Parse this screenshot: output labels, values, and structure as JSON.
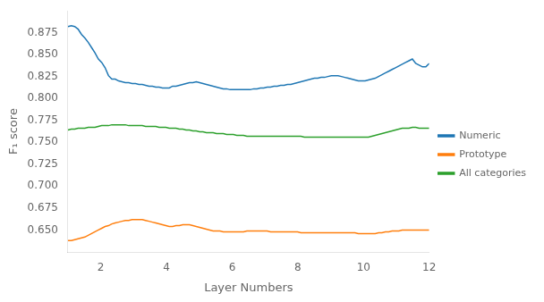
{
  "chart_data": {
    "type": "line",
    "xlabel": "Layer Numbers",
    "ylabel": "F₁ score",
    "x": [
      1,
      1.1028,
      1.2056,
      1.3084,
      1.4112,
      1.514,
      1.6168,
      1.7196,
      1.8224,
      1.9252,
      2.028,
      2.1308,
      2.2336,
      2.3364,
      2.4393,
      2.5421,
      2.6449,
      2.7477,
      2.8505,
      2.9533,
      3.0561,
      3.1589,
      3.2617,
      3.3645,
      3.4673,
      3.5701,
      3.6729,
      3.7757,
      3.8785,
      3.9813,
      4.0841,
      4.1869,
      4.2897,
      4.3925,
      4.4953,
      4.5981,
      4.7009,
      4.8037,
      4.9065,
      5.0093,
      5.1121,
      5.215,
      5.3178,
      5.4206,
      5.5234,
      5.6262,
      5.729,
      5.8318,
      5.9346,
      6.0374,
      6.1402,
      6.243,
      6.3458,
      6.4486,
      6.5514,
      6.6542,
      6.757,
      6.8598,
      6.9626,
      7.0654,
      7.1682,
      7.271,
      7.3738,
      7.4766,
      7.5794,
      7.6822,
      7.785,
      7.8879,
      7.9907,
      8.0935,
      8.1963,
      8.2991,
      8.4019,
      8.5047,
      8.6075,
      8.7103,
      8.8131,
      8.9159,
      9.0187,
      9.1215,
      9.2243,
      9.3271,
      9.4299,
      9.5327,
      9.6355,
      9.7383,
      9.8411,
      9.9439,
      10.0467,
      10.1495,
      10.2523,
      10.3551,
      10.4579,
      10.5607,
      10.6636,
      10.7664,
      10.8692,
      10.972,
      11.0748,
      11.1776,
      11.2804,
      11.3832,
      11.486,
      11.5888,
      11.6916,
      11.7944,
      11.8972,
      12
    ],
    "series": [
      {
        "name": "Numeric",
        "color": "#1f77b4",
        "values": [
          0.882,
          0.883,
          0.882,
          0.879,
          0.873,
          0.869,
          0.864,
          0.858,
          0.852,
          0.845,
          0.841,
          0.835,
          0.826,
          0.822,
          0.822,
          0.82,
          0.819,
          0.818,
          0.818,
          0.817,
          0.817,
          0.816,
          0.816,
          0.815,
          0.814,
          0.814,
          0.813,
          0.813,
          0.812,
          0.812,
          0.812,
          0.814,
          0.814,
          0.815,
          0.816,
          0.817,
          0.818,
          0.818,
          0.819,
          0.818,
          0.817,
          0.816,
          0.815,
          0.814,
          0.813,
          0.812,
          0.811,
          0.811,
          0.81,
          0.81,
          0.81,
          0.81,
          0.81,
          0.81,
          0.81,
          0.811,
          0.811,
          0.812,
          0.812,
          0.813,
          0.813,
          0.814,
          0.814,
          0.815,
          0.815,
          0.816,
          0.816,
          0.817,
          0.818,
          0.819,
          0.82,
          0.821,
          0.822,
          0.823,
          0.823,
          0.824,
          0.824,
          0.825,
          0.826,
          0.826,
          0.826,
          0.825,
          0.824,
          0.823,
          0.822,
          0.821,
          0.82,
          0.82,
          0.82,
          0.821,
          0.822,
          0.823,
          0.825,
          0.827,
          0.829,
          0.831,
          0.833,
          0.835,
          0.837,
          0.839,
          0.841,
          0.843,
          0.845,
          0.84,
          0.838,
          0.836,
          0.836,
          0.84
        ]
      },
      {
        "name": "Prototype",
        "color": "#ff7f0e",
        "values": [
          0.638,
          0.638,
          0.639,
          0.64,
          0.641,
          0.642,
          0.644,
          0.646,
          0.648,
          0.65,
          0.652,
          0.654,
          0.655,
          0.657,
          0.658,
          0.659,
          0.66,
          0.661,
          0.661,
          0.662,
          0.662,
          0.662,
          0.662,
          0.661,
          0.66,
          0.659,
          0.658,
          0.657,
          0.656,
          0.655,
          0.654,
          0.654,
          0.655,
          0.655,
          0.656,
          0.656,
          0.656,
          0.655,
          0.654,
          0.653,
          0.652,
          0.651,
          0.65,
          0.649,
          0.649,
          0.649,
          0.648,
          0.648,
          0.648,
          0.648,
          0.648,
          0.648,
          0.648,
          0.649,
          0.649,
          0.649,
          0.649,
          0.649,
          0.649,
          0.649,
          0.648,
          0.648,
          0.648,
          0.648,
          0.648,
          0.648,
          0.648,
          0.648,
          0.648,
          0.647,
          0.647,
          0.647,
          0.647,
          0.647,
          0.647,
          0.647,
          0.647,
          0.647,
          0.647,
          0.647,
          0.647,
          0.647,
          0.647,
          0.647,
          0.647,
          0.647,
          0.646,
          0.646,
          0.646,
          0.646,
          0.646,
          0.646,
          0.647,
          0.647,
          0.648,
          0.648,
          0.649,
          0.649,
          0.649,
          0.65,
          0.65,
          0.65,
          0.65,
          0.65,
          0.65,
          0.65,
          0.65,
          0.65
        ]
      },
      {
        "name": "All categories",
        "color": "#2ca02c",
        "values": [
          0.764,
          0.765,
          0.765,
          0.766,
          0.766,
          0.766,
          0.767,
          0.767,
          0.767,
          0.768,
          0.769,
          0.769,
          0.769,
          0.77,
          0.77,
          0.77,
          0.77,
          0.77,
          0.769,
          0.769,
          0.769,
          0.769,
          0.769,
          0.768,
          0.768,
          0.768,
          0.768,
          0.767,
          0.767,
          0.767,
          0.766,
          0.766,
          0.766,
          0.765,
          0.765,
          0.764,
          0.764,
          0.763,
          0.763,
          0.762,
          0.762,
          0.761,
          0.761,
          0.761,
          0.76,
          0.76,
          0.76,
          0.759,
          0.759,
          0.759,
          0.758,
          0.758,
          0.758,
          0.757,
          0.757,
          0.757,
          0.757,
          0.757,
          0.757,
          0.757,
          0.757,
          0.757,
          0.757,
          0.757,
          0.757,
          0.757,
          0.757,
          0.757,
          0.757,
          0.757,
          0.756,
          0.756,
          0.756,
          0.756,
          0.756,
          0.756,
          0.756,
          0.756,
          0.756,
          0.756,
          0.756,
          0.756,
          0.756,
          0.756,
          0.756,
          0.756,
          0.756,
          0.756,
          0.756,
          0.756,
          0.757,
          0.758,
          0.759,
          0.76,
          0.761,
          0.762,
          0.763,
          0.764,
          0.765,
          0.766,
          0.766,
          0.766,
          0.767,
          0.767,
          0.766,
          0.766,
          0.766,
          0.766
        ]
      }
    ],
    "xlim": [
      1,
      12
    ],
    "ylim": [
      0.625,
      0.9
    ],
    "xticks": [
      2,
      4,
      6,
      8,
      10,
      12
    ],
    "yticks": [
      {
        "value": 0.65,
        "label": "0.650"
      },
      0.675,
      {
        "value": 0.7,
        "label": "0.700"
      },
      0.725,
      {
        "value": 0.75,
        "label": "0.750"
      },
      0.775,
      {
        "value": 0.8,
        "label": "0.800"
      },
      0.825,
      {
        "value": 0.85,
        "label": "0.850"
      },
      0.875
    ],
    "grid": false,
    "legend": "right"
  }
}
